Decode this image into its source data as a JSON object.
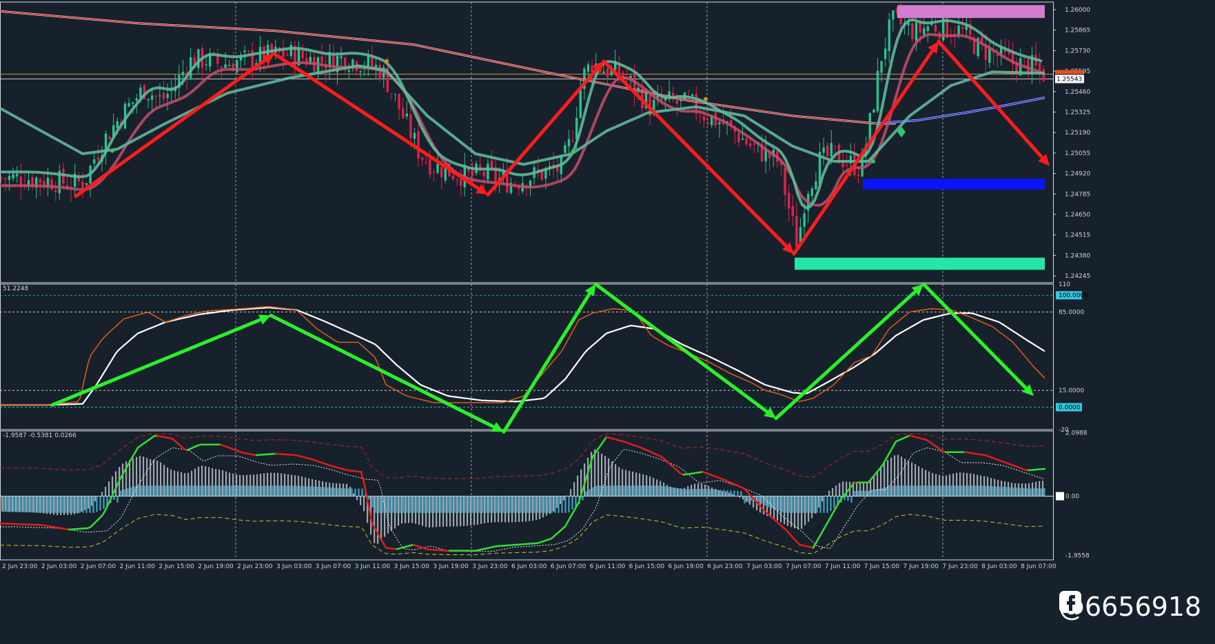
{
  "colors": {
    "background": "#17212b",
    "grid": "#b8c0c8",
    "bull_candle": "#26c490",
    "bear_candle": "#e0204a",
    "arrow_red": "#ff1c1c",
    "arrow_green": "#2af02a",
    "sma_red": "#b23a3a",
    "sma_blue": "#2a36e8",
    "magenta_zone": "#d27cd2",
    "blue_zone": "#0a14ff",
    "mint_zone": "#25e6a8",
    "stoch_white": "#ffffff",
    "stoch_orange": "#e35d12",
    "hist_gray": "#9ea6ae",
    "hist_cyan": "#3ea4c8"
  },
  "chart_data": [
    {
      "type": "candlestick",
      "symbol_note": "price panel",
      "y_ticks": [
        "1.26000",
        "1.25865",
        "1.25730",
        "1.25595",
        "1.25460",
        "1.25325",
        "1.25190",
        "1.25055",
        "1.24920",
        "1.24785",
        "1.24650",
        "1.24515",
        "1.24380",
        "1.24245"
      ],
      "price_labels": [
        "1.25543"
      ],
      "ylim": [
        1.242,
        1.2605
      ],
      "x_ticks": [
        "2 Jun 23:00",
        "2 Jun 03:00",
        "2 Jun 07:00",
        "2 Jun 11:00",
        "2 Jun 15:00",
        "2 Jun 19:00",
        "2 Jun 23:00",
        "3 Jun 03:00",
        "3 Jun 07:00",
        "3 Jun 11:00",
        "3 Jun 15:00",
        "3 Jun 19:00",
        "3 Jun 23:00",
        "6 Jun 03:00",
        "6 Jun 07:00",
        "6 Jun 11:00",
        "6 Jun 15:00",
        "6 Jun 19:00",
        "6 Jun 23:00",
        "7 Jun 03:00",
        "7 Jun 07:00",
        "7 Jun 11:00",
        "7 Jun 15:00",
        "7 Jun 19:00",
        "7 Jun 23:00",
        "8 Jun 03:00",
        "8 Jun 07:00"
      ],
      "close_path": [
        [
          0,
          1.2489
        ],
        [
          40,
          1.2489
        ],
        [
          80,
          1.2487
        ],
        [
          110,
          1.2485
        ],
        [
          125,
          1.2488
        ],
        [
          140,
          1.2505
        ],
        [
          160,
          1.252
        ],
        [
          185,
          1.2535
        ],
        [
          210,
          1.2548
        ],
        [
          235,
          1.254
        ],
        [
          255,
          1.255
        ],
        [
          275,
          1.2566
        ],
        [
          300,
          1.2567
        ],
        [
          320,
          1.2564
        ],
        [
          345,
          1.2566
        ],
        [
          370,
          1.2568
        ],
        [
          395,
          1.257
        ],
        [
          420,
          1.2571
        ],
        [
          445,
          1.2568
        ],
        [
          470,
          1.2566
        ],
        [
          500,
          1.2568
        ],
        [
          530,
          1.2565
        ],
        [
          555,
          1.256
        ],
        [
          570,
          1.2545
        ],
        [
          590,
          1.2525
        ],
        [
          610,
          1.2505
        ],
        [
          630,
          1.2497
        ],
        [
          655,
          1.2493
        ],
        [
          680,
          1.249
        ],
        [
          705,
          1.2492
        ],
        [
          725,
          1.2488
        ],
        [
          745,
          1.2486
        ],
        [
          770,
          1.249
        ],
        [
          795,
          1.2493
        ],
        [
          815,
          1.2496
        ],
        [
          830,
          1.2515
        ],
        [
          845,
          1.2555
        ],
        [
          860,
          1.2565
        ],
        [
          880,
          1.256
        ],
        [
          900,
          1.2558
        ],
        [
          920,
          1.255
        ],
        [
          945,
          1.2535
        ],
        [
          965,
          1.254
        ],
        [
          985,
          1.2538
        ],
        [
          1005,
          1.2537
        ],
        [
          1025,
          1.253
        ],
        [
          1050,
          1.2525
        ],
        [
          1070,
          1.2518
        ],
        [
          1090,
          1.251
        ],
        [
          1110,
          1.2505
        ],
        [
          1130,
          1.25
        ],
        [
          1145,
          1.247
        ],
        [
          1158,
          1.2445
        ],
        [
          1170,
          1.248
        ],
        [
          1190,
          1.25
        ],
        [
          1210,
          1.2505
        ],
        [
          1230,
          1.25
        ],
        [
          1250,
          1.2495
        ],
        [
          1265,
          1.253
        ],
        [
          1280,
          1.257
        ],
        [
          1295,
          1.2592
        ],
        [
          1310,
          1.259
        ],
        [
          1330,
          1.2585
        ],
        [
          1350,
          1.259
        ],
        [
          1370,
          1.2588
        ],
        [
          1395,
          1.2586
        ],
        [
          1420,
          1.2575
        ],
        [
          1445,
          1.257
        ],
        [
          1470,
          1.2565
        ],
        [
          1495,
          1.2563
        ],
        [
          1515,
          1.2558
        ]
      ],
      "annotations": [
        {
          "kind": "arrow",
          "color": "red",
          "from": [
            110,
            1.2477
          ],
          "to": [
            398,
            1.2571
          ]
        },
        {
          "kind": "arrow",
          "color": "red",
          "from": [
            398,
            1.2571
          ],
          "to": [
            708,
            1.2478
          ]
        },
        {
          "kind": "arrow",
          "color": "red",
          "from": [
            708,
            1.2478
          ],
          "to": [
            876,
            1.2566
          ]
        },
        {
          "kind": "arrow",
          "color": "red",
          "from": [
            876,
            1.2566
          ],
          "to": [
            1152,
            1.2439
          ]
        },
        {
          "kind": "arrow",
          "color": "red",
          "from": [
            1152,
            1.2439
          ],
          "to": [
            1362,
            1.2579
          ]
        },
        {
          "kind": "arrow",
          "color": "red",
          "from": [
            1362,
            1.2579
          ],
          "to": [
            1523,
            1.2497
          ]
        }
      ],
      "zones": [
        {
          "color": "magenta",
          "x0": 1302,
          "x1": 1516,
          "y_top": 1.2603,
          "y_bottom": 1.25945
        },
        {
          "color": "blue",
          "x0": 1252,
          "x1": 1516,
          "y_top": 1.24885,
          "y_bottom": 1.24815
        },
        {
          "color": "mint",
          "x0": 1153,
          "x1": 1516,
          "y_top": 1.24365,
          "y_bottom": 1.24285
        }
      ]
    },
    {
      "type": "line",
      "header": "51.2248",
      "y_ticks": [
        "110",
        "100.0000",
        "85.0000",
        "15.0000",
        "0.0000",
        "-20"
      ],
      "ylim": [
        -20,
        110
      ],
      "levels": [
        100,
        85,
        15,
        0
      ],
      "series": [
        {
          "values": [
            [
              0,
              2
            ],
            [
              70,
              2
            ],
            [
              120,
              3
            ],
            [
              140,
              20
            ],
            [
              170,
              50
            ],
            [
              200,
              66
            ],
            [
              240,
              76
            ],
            [
              290,
              83
            ],
            [
              340,
              87
            ],
            [
              390,
              89
            ],
            [
              430,
              87
            ],
            [
              470,
              77
            ],
            [
              510,
              66
            ],
            [
              545,
              56
            ],
            [
              575,
              38
            ],
            [
              610,
              20
            ],
            [
              650,
              10
            ],
            [
              700,
              6
            ],
            [
              750,
              5
            ],
            [
              790,
              8
            ],
            [
              820,
              25
            ],
            [
              850,
              50
            ],
            [
              880,
              66
            ],
            [
              915,
              73
            ],
            [
              950,
              70
            ],
            [
              990,
              56
            ],
            [
              1030,
              45
            ],
            [
              1070,
              33
            ],
            [
              1110,
              20
            ],
            [
              1150,
              13
            ],
            [
              1170,
              12
            ],
            [
              1200,
              22
            ],
            [
              1240,
              36
            ],
            [
              1270,
              48
            ],
            [
              1300,
              64
            ],
            [
              1340,
              78
            ],
            [
              1380,
              84
            ],
            [
              1410,
              84
            ],
            [
              1450,
              76
            ],
            [
              1490,
              60
            ],
            [
              1516,
              50
            ]
          ]
        },
        {
          "values": [
            [
              0,
              2
            ],
            [
              70,
              2
            ],
            [
              115,
              5
            ],
            [
              130,
              45
            ],
            [
              150,
              62
            ],
            [
              180,
              79
            ],
            [
              215,
              85
            ],
            [
              240,
              76
            ],
            [
              270,
              82
            ],
            [
              300,
              86
            ],
            [
              350,
              88
            ],
            [
              390,
              90
            ],
            [
              430,
              87
            ],
            [
              460,
              70
            ],
            [
              490,
              58
            ],
            [
              520,
              58
            ],
            [
              545,
              44
            ],
            [
              560,
              20
            ],
            [
              590,
              10
            ],
            [
              630,
              4
            ],
            [
              680,
              4
            ],
            [
              730,
              4
            ],
            [
              760,
              10
            ],
            [
              790,
              32
            ],
            [
              815,
              50
            ],
            [
              840,
              78
            ],
            [
              860,
              84
            ],
            [
              890,
              88
            ],
            [
              920,
              86
            ],
            [
              945,
              64
            ],
            [
              970,
              55
            ],
            [
              1000,
              48
            ],
            [
              1030,
              40
            ],
            [
              1060,
              30
            ],
            [
              1090,
              22
            ],
            [
              1110,
              15
            ],
            [
              1130,
              12
            ],
            [
              1160,
              5
            ],
            [
              1180,
              8
            ],
            [
              1210,
              20
            ],
            [
              1240,
              40
            ],
            [
              1265,
              46
            ],
            [
              1290,
              70
            ],
            [
              1320,
              85
            ],
            [
              1350,
              88
            ],
            [
              1380,
              87
            ],
            [
              1410,
              80
            ],
            [
              1440,
              72
            ],
            [
              1470,
              58
            ],
            [
              1500,
              36
            ],
            [
              1516,
              26
            ]
          ]
        }
      ],
      "annotations": [
        {
          "kind": "arrow",
          "color": "green",
          "from": [
            76,
            2
          ],
          "to": [
            393,
            82
          ]
        },
        {
          "kind": "arrow",
          "color": "green",
          "from": [
            393,
            82
          ],
          "to": [
            731,
            -22
          ]
        },
        {
          "kind": "arrow",
          "color": "green",
          "from": [
            731,
            -22
          ],
          "to": [
            864,
            110
          ]
        },
        {
          "kind": "arrow",
          "color": "green",
          "from": [
            864,
            110
          ],
          "to": [
            1126,
            -10
          ]
        },
        {
          "kind": "arrow",
          "color": "green",
          "from": [
            1126,
            -10
          ],
          "to": [
            1340,
            110
          ]
        },
        {
          "kind": "arrow",
          "color": "green",
          "from": [
            1340,
            110
          ],
          "to": [
            1500,
            10
          ]
        }
      ]
    },
    {
      "type": "bar",
      "header": "-1.9587 -0.5381 0.0266",
      "y_ticks": [
        "2.0988",
        "0.00",
        "-1.9558"
      ],
      "ylim": [
        -2.1,
        2.15
      ],
      "main_line": [
        [
          0,
          -0.9
        ],
        [
          60,
          -0.95
        ],
        [
          100,
          -1.1
        ],
        [
          130,
          -1.05
        ],
        [
          150,
          -0.6
        ],
        [
          175,
          0.6
        ],
        [
          200,
          1.6
        ],
        [
          225,
          2.0
        ],
        [
          250,
          1.9
        ],
        [
          270,
          1.5
        ],
        [
          290,
          1.7
        ],
        [
          320,
          1.7
        ],
        [
          350,
          1.45
        ],
        [
          370,
          1.35
        ],
        [
          400,
          1.4
        ],
        [
          430,
          1.35
        ],
        [
          455,
          1.2
        ],
        [
          480,
          1.0
        ],
        [
          505,
          0.85
        ],
        [
          525,
          0.8
        ],
        [
          540,
          -0.9
        ],
        [
          560,
          -1.7
        ],
        [
          575,
          -1.75
        ],
        [
          600,
          -1.6
        ],
        [
          620,
          -1.75
        ],
        [
          650,
          -1.8
        ],
        [
          690,
          -1.8
        ],
        [
          720,
          -1.65
        ],
        [
          750,
          -1.6
        ],
        [
          780,
          -1.55
        ],
        [
          800,
          -1.4
        ],
        [
          820,
          -1.0
        ],
        [
          840,
          -0.2
        ],
        [
          860,
          1.3
        ],
        [
          880,
          1.95
        ],
        [
          905,
          1.8
        ],
        [
          930,
          1.6
        ],
        [
          960,
          1.3
        ],
        [
          990,
          0.7
        ],
        [
          1020,
          0.8
        ],
        [
          1050,
          0.55
        ],
        [
          1080,
          0.25
        ],
        [
          1110,
          -0.5
        ],
        [
          1140,
          -1.1
        ],
        [
          1160,
          -1.6
        ],
        [
          1180,
          -1.7
        ],
        [
          1200,
          -0.9
        ],
        [
          1220,
          -0.1
        ],
        [
          1240,
          0.45
        ],
        [
          1260,
          0.45
        ],
        [
          1280,
          1.0
        ],
        [
          1300,
          1.8
        ],
        [
          1320,
          2.0
        ],
        [
          1345,
          1.85
        ],
        [
          1370,
          1.45
        ],
        [
          1400,
          1.45
        ],
        [
          1430,
          1.35
        ],
        [
          1460,
          1.1
        ],
        [
          1490,
          0.85
        ],
        [
          1516,
          0.9
        ]
      ]
    }
  ],
  "watermark": {
    "handle": "@6656918",
    "icon": "tiktok-style-f-icon"
  }
}
